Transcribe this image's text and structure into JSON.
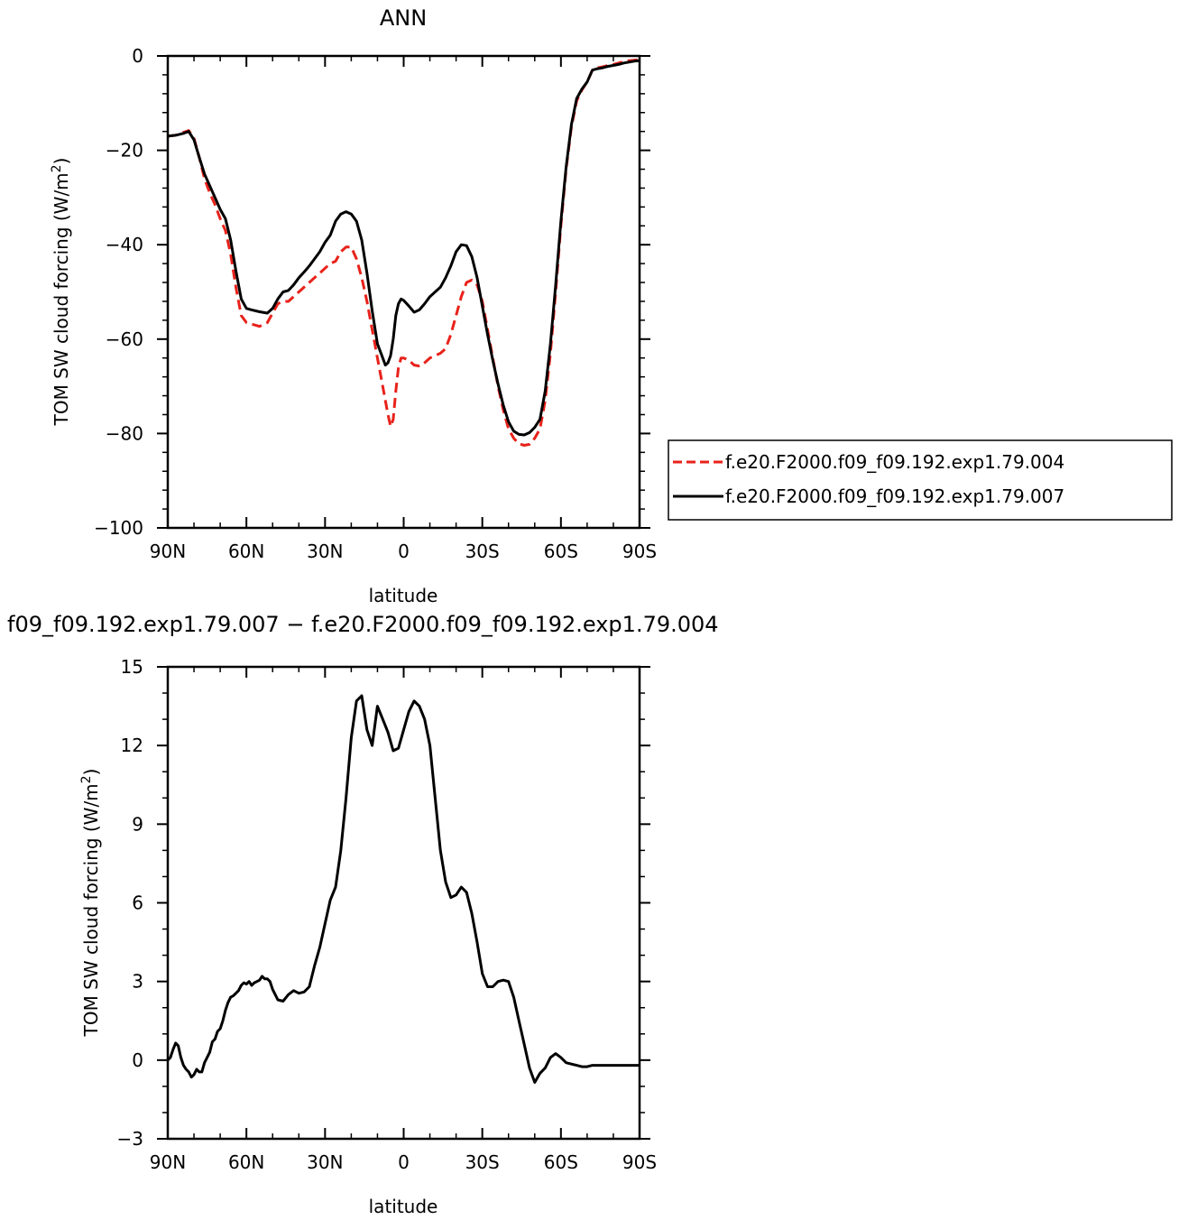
{
  "chart_data": [
    {
      "type": "line",
      "title": "ANN",
      "xlabel": "latitude",
      "ylabel": "TOM SW cloud forcing (W/m",
      "ylabel_sup": "2",
      "ylabel_close": ")",
      "xlim": [
        90,
        -90
      ],
      "ylim": [
        -100,
        0
      ],
      "xticks": [
        90,
        60,
        30,
        0,
        -30,
        -60,
        -90
      ],
      "xtick_labels": [
        "90N",
        "60N",
        "30N",
        "0",
        "30S",
        "60S",
        "90S"
      ],
      "yticks": [
        0,
        -20,
        -40,
        -60,
        -80,
        -100
      ],
      "ytick_labels": [
        "0",
        "−20",
        "−40",
        "−60",
        "−80",
        "−100"
      ],
      "grid": false,
      "legend_position": "right",
      "series": [
        {
          "name": "f.e20.F2000.f09_f09.192.exp1.79.004",
          "color": "#e8221a",
          "dash": "dashed",
          "x": [
            90,
            87,
            84,
            83,
            82,
            80,
            78,
            76,
            74,
            72,
            70,
            68,
            66,
            64,
            62,
            60,
            58,
            55,
            52,
            50,
            48,
            46,
            44,
            42,
            40,
            38,
            36,
            34,
            32,
            30,
            28,
            26,
            24,
            22,
            20,
            18,
            16,
            14,
            12,
            10,
            8,
            7,
            6,
            5,
            4,
            3,
            2,
            1,
            0,
            -2,
            -4,
            -6,
            -8,
            -10,
            -12,
            -14,
            -16,
            -18,
            -20,
            -22,
            -24,
            -26,
            -28,
            -30,
            -32,
            -34,
            -36,
            -38,
            -40,
            -42,
            -44,
            -46,
            -48,
            -50,
            -52,
            -54,
            -56,
            -58,
            -60,
            -62,
            -64,
            -66,
            -68,
            -70,
            -72,
            -74,
            -76,
            -78,
            -80,
            -82,
            -84,
            -86,
            -88,
            -90
          ],
          "y": [
            -17,
            -16.8,
            -16.2,
            -16,
            -15.8,
            -17.5,
            -21.5,
            -26,
            -29,
            -31.5,
            -34.5,
            -37,
            -42,
            -49,
            -55,
            -56.5,
            -56.8,
            -57.3,
            -56.5,
            -54.5,
            -52.5,
            -52,
            -52,
            -51,
            -50,
            -49,
            -48,
            -47,
            -46,
            -45,
            -44,
            -43.5,
            -41.5,
            -40.5,
            -40.5,
            -43,
            -47,
            -52,
            -58,
            -64,
            -70,
            -73,
            -76,
            -78.5,
            -77,
            -71,
            -66,
            -64,
            -64,
            -64.5,
            -65.5,
            -65.7,
            -65,
            -64,
            -63.5,
            -63,
            -62,
            -59,
            -55,
            -51,
            -48,
            -47.5,
            -48.5,
            -52,
            -58,
            -64,
            -70,
            -75,
            -79,
            -81,
            -82.2,
            -82.5,
            -82.3,
            -81,
            -79,
            -73,
            -63,
            -50,
            -36,
            -24,
            -15,
            -9.5,
            -7.2,
            -5.5,
            -3,
            -2.5,
            -2.3,
            -2,
            -1.8,
            -1.5,
            -1.2,
            -1,
            -0.9,
            -0.8
          ]
        },
        {
          "name": "f.e20.F2000.f09_f09.192.exp1.79.007",
          "color": "#000000",
          "dash": "solid",
          "x": [
            90,
            87,
            84,
            83,
            82,
            80,
            78,
            76,
            74,
            72,
            70,
            68,
            66,
            64,
            62,
            60,
            58,
            55,
            52,
            50,
            48,
            46,
            44,
            42,
            40,
            38,
            36,
            34,
            32,
            30,
            28,
            26,
            24,
            22,
            20,
            18,
            16,
            14,
            12,
            10,
            8,
            7,
            6,
            5,
            4,
            3,
            2,
            1,
            0,
            -2,
            -4,
            -6,
            -8,
            -10,
            -12,
            -14,
            -16,
            -18,
            -20,
            -22,
            -24,
            -26,
            -28,
            -30,
            -32,
            -34,
            -36,
            -38,
            -40,
            -42,
            -44,
            -46,
            -48,
            -50,
            -52,
            -54,
            -56,
            -58,
            -60,
            -62,
            -64,
            -66,
            -68,
            -70,
            -72,
            -74,
            -76,
            -78,
            -80,
            -82,
            -84,
            -86,
            -88,
            -90
          ],
          "y": [
            -17,
            -16.8,
            -16.4,
            -16.2,
            -16,
            -17.8,
            -21.5,
            -25,
            -27.5,
            -30,
            -32.5,
            -34.5,
            -39,
            -45.5,
            -51.5,
            -53.5,
            -53.8,
            -54.2,
            -54.5,
            -53.5,
            -51.5,
            -50,
            -49.7,
            -48.5,
            -47,
            -45.8,
            -44.5,
            -43,
            -41.5,
            -39.5,
            -38,
            -35,
            -33.5,
            -33,
            -33.5,
            -35,
            -39,
            -46,
            -54,
            -61,
            -64,
            -65.5,
            -65,
            -63.5,
            -60,
            -55,
            -52.5,
            -51.5,
            -51.8,
            -53,
            -54.3,
            -53.8,
            -52.5,
            -51,
            -50,
            -49,
            -47,
            -44.5,
            -41.5,
            -40,
            -40.2,
            -42.5,
            -47,
            -53,
            -59,
            -64.5,
            -69.5,
            -74,
            -77.5,
            -79.5,
            -80.2,
            -80.3,
            -79.8,
            -78.7,
            -77,
            -71,
            -61,
            -48.5,
            -35,
            -23.5,
            -14.5,
            -9,
            -7,
            -5.5,
            -3,
            -2.7,
            -2.5,
            -2.2,
            -2,
            -1.8,
            -1.5,
            -1.3,
            -1.1,
            -1
          ]
        }
      ]
    },
    {
      "type": "line",
      "title": "f09_f09.192.exp1.79.007 − f.e20.F2000.f09_f09.192.exp1.79.004",
      "xlabel": "latitude",
      "ylabel": "TOM SW cloud forcing (W/m",
      "ylabel_sup": "2",
      "ylabel_close": ")",
      "xlim": [
        90,
        -90
      ],
      "ylim": [
        -3,
        15
      ],
      "xticks": [
        90,
        60,
        30,
        0,
        -30,
        -60,
        -90
      ],
      "xtick_labels": [
        "90N",
        "60N",
        "30N",
        "0",
        "30S",
        "60S",
        "90S"
      ],
      "yticks": [
        15,
        12,
        9,
        6,
        3,
        0,
        -3
      ],
      "ytick_labels": [
        "15",
        "12",
        "9",
        "6",
        "3",
        "0",
        "−3"
      ],
      "grid": false,
      "series": [
        {
          "color": "#000000",
          "dash": "solid",
          "x": [
            90,
            89,
            88,
            87,
            86,
            85,
            84,
            83,
            82,
            81,
            80,
            79,
            78,
            77,
            76,
            75,
            74,
            73,
            72,
            71,
            70,
            69,
            68,
            67,
            66,
            65,
            64,
            63,
            62,
            61,
            60,
            59,
            58,
            57,
            56,
            55,
            54,
            53,
            52,
            51,
            50,
            48,
            46,
            44,
            42,
            40,
            38,
            36,
            34,
            32,
            30,
            28,
            26,
            24,
            22,
            20,
            18,
            16,
            14,
            12,
            10,
            8,
            6,
            4,
            2,
            0,
            -2,
            -4,
            -6,
            -8,
            -10,
            -12,
            -14,
            -16,
            -18,
            -20,
            -22,
            -24,
            -26,
            -28,
            -30,
            -32,
            -34,
            -36,
            -38,
            -40,
            -42,
            -44,
            -46,
            -48,
            -50,
            -52,
            -54,
            -56,
            -58,
            -60,
            -62,
            -64,
            -66,
            -68,
            -70,
            -72,
            -74,
            -76,
            -78,
            -80,
            -82,
            -84,
            -86,
            -88,
            -90
          ],
          "y": [
            0,
            0.1,
            0.4,
            0.65,
            0.55,
            0.1,
            -0.2,
            -0.35,
            -0.45,
            -0.65,
            -0.55,
            -0.35,
            -0.45,
            -0.45,
            -0.1,
            0.1,
            0.3,
            0.7,
            0.8,
            1.1,
            1.2,
            1.5,
            1.9,
            2.2,
            2.4,
            2.45,
            2.55,
            2.65,
            2.85,
            2.95,
            2.9,
            3.0,
            2.85,
            2.95,
            3.0,
            3.05,
            3.2,
            3.1,
            3.1,
            3.0,
            2.7,
            2.3,
            2.25,
            2.5,
            2.65,
            2.55,
            2.6,
            2.8,
            3.6,
            4.3,
            5.2,
            6.1,
            6.6,
            8.0,
            10.0,
            12.3,
            13.7,
            13.9,
            12.6,
            12.0,
            13.5,
            13.0,
            12.5,
            11.8,
            11.9,
            12.6,
            13.3,
            13.7,
            13.5,
            13.0,
            12.0,
            10.0,
            8.0,
            6.8,
            6.2,
            6.3,
            6.6,
            6.4,
            5.6,
            4.5,
            3.3,
            2.8,
            2.8,
            3.0,
            3.05,
            3.0,
            2.4,
            1.5,
            0.6,
            -0.3,
            -0.85,
            -0.5,
            -0.3,
            0.1,
            0.25,
            0.1,
            -0.1,
            -0.15,
            -0.2,
            -0.25,
            -0.25,
            -0.2,
            -0.2,
            -0.2,
            -0.2,
            -0.2,
            -0.2,
            -0.2,
            -0.2,
            -0.2,
            -0.2
          ]
        }
      ]
    }
  ]
}
